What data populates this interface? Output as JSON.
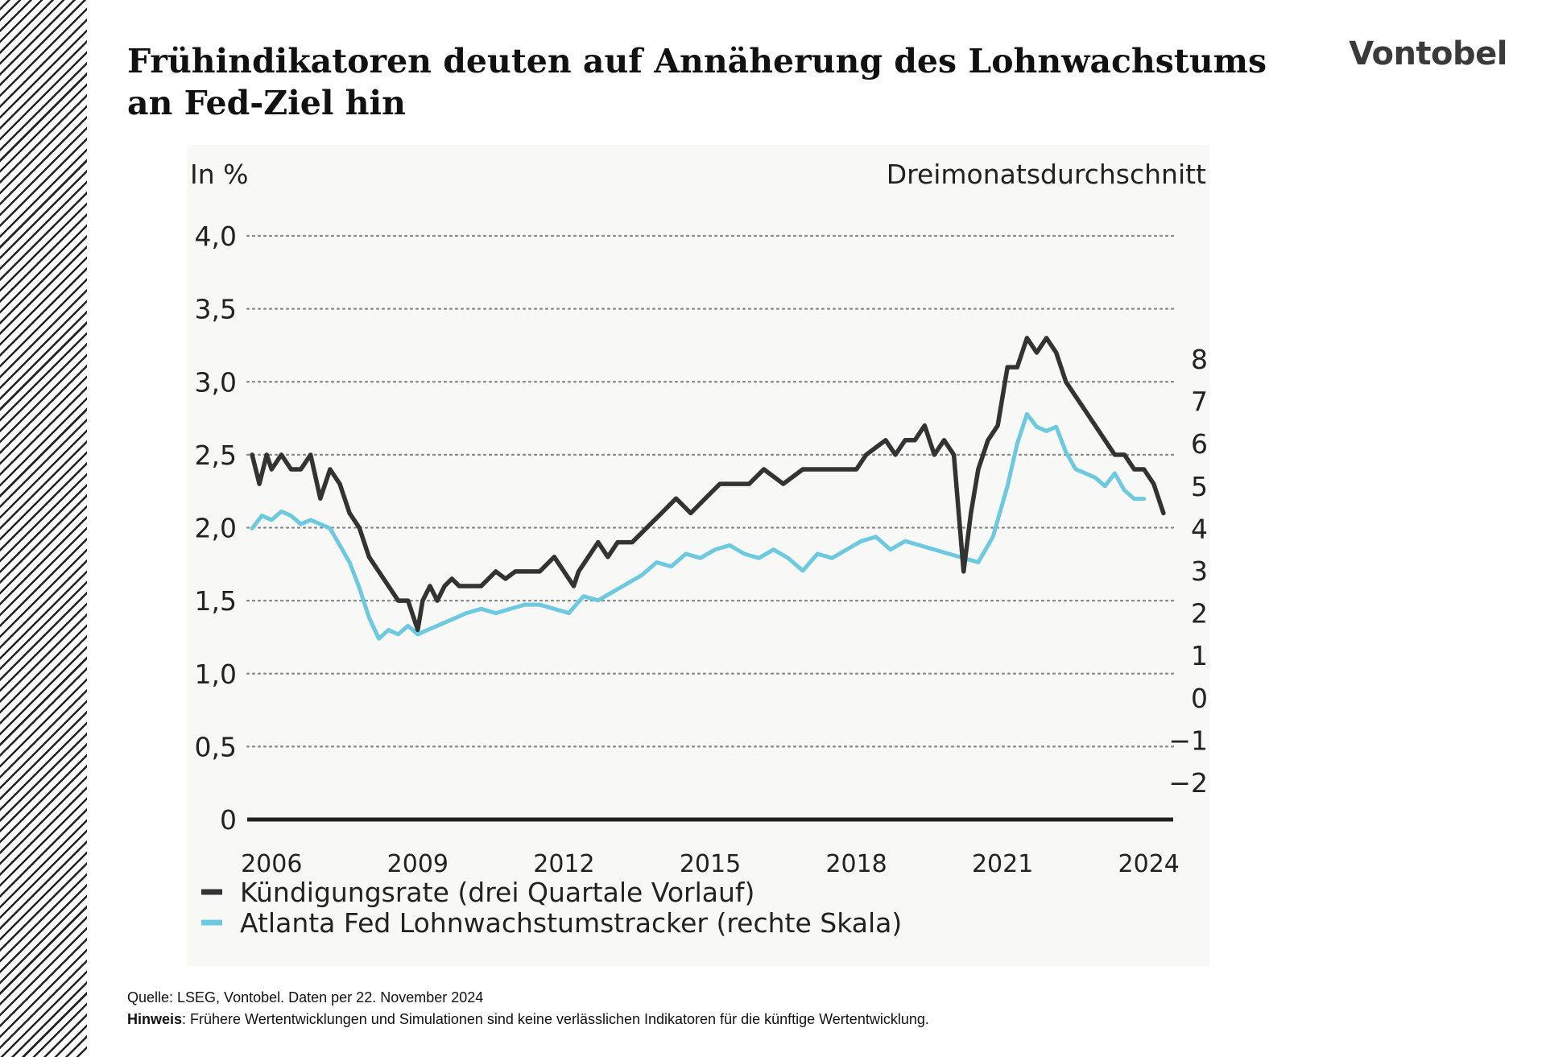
{
  "header": {
    "title": "Frühindikatoren deuten auf Annäherung des Lohnwachstums an Fed-Ziel hin",
    "logo": "Vontobel"
  },
  "footer": {
    "source": "Quelle: LSEG, Vontobel. Daten per 22. November 2024",
    "note_label": "Hinweis",
    "note_text": ": Frühere Wertentwicklungen und Simulationen sind keine verlässlichen Indikatoren für die künftige Wertentwicklung."
  },
  "chart_data": {
    "type": "line",
    "left_axis_title": "In %",
    "right_axis_title": "Dreimonatsdurchschnitt",
    "ylim_left": [
      0,
      4.0
    ],
    "yticks_left": [
      "0",
      "0,5",
      "1,0",
      "1,5",
      "2,0",
      "2,5",
      "3,0",
      "3,5",
      "4,0"
    ],
    "ylim_right": [
      -2,
      8
    ],
    "yticks_right": [
      "−2",
      "−1",
      "0",
      "1",
      "2",
      "3",
      "4",
      "5",
      "6",
      "7",
      "8"
    ],
    "xlim": [
      2005.5,
      2024.5
    ],
    "xticks": [
      "2006",
      "2009",
      "2012",
      "2015",
      "2018",
      "2021",
      "2024"
    ],
    "grid": "horizontal dotted",
    "legend_position": "bottom",
    "colors": {
      "series1": "#333333",
      "series2": "#6cc9e0",
      "grid": "#888888"
    },
    "series": [
      {
        "name": "Kündigungsrate (drei Quartale Vorlauf)",
        "axis": "left",
        "x": [
          2005.6,
          2005.75,
          2005.9,
          2006.0,
          2006.2,
          2006.4,
          2006.6,
          2006.8,
          2007.0,
          2007.2,
          2007.4,
          2007.6,
          2007.8,
          2008.0,
          2008.2,
          2008.4,
          2008.6,
          2008.8,
          2009.0,
          2009.1,
          2009.25,
          2009.4,
          2009.55,
          2009.7,
          2009.85,
          2010.0,
          2010.3,
          2010.6,
          2010.8,
          2011.0,
          2011.2,
          2011.5,
          2011.8,
          2012.0,
          2012.2,
          2012.3,
          2012.5,
          2012.7,
          2012.9,
          2013.1,
          2013.4,
          2013.7,
          2014.0,
          2014.3,
          2014.6,
          2014.9,
          2015.2,
          2015.5,
          2015.8,
          2016.1,
          2016.5,
          2016.9,
          2017.3,
          2017.7,
          2018.0,
          2018.2,
          2018.4,
          2018.6,
          2018.8,
          2019.0,
          2019.2,
          2019.4,
          2019.6,
          2019.8,
          2020.0,
          2020.2,
          2020.35,
          2020.5,
          2020.7,
          2020.9,
          2021.1,
          2021.3,
          2021.5,
          2021.7,
          2021.9,
          2022.1,
          2022.3,
          2022.5,
          2022.7,
          2022.9,
          2023.1,
          2023.3,
          2023.5,
          2023.7,
          2023.9,
          2024.1,
          2024.3
        ],
        "values": [
          2.5,
          2.3,
          2.5,
          2.4,
          2.5,
          2.4,
          2.4,
          2.5,
          2.2,
          2.4,
          2.3,
          2.1,
          2.0,
          1.8,
          1.7,
          1.6,
          1.5,
          1.5,
          1.3,
          1.5,
          1.6,
          1.5,
          1.6,
          1.65,
          1.6,
          1.6,
          1.6,
          1.7,
          1.65,
          1.7,
          1.7,
          1.7,
          1.8,
          1.7,
          1.6,
          1.7,
          1.8,
          1.9,
          1.8,
          1.9,
          1.9,
          2.0,
          2.1,
          2.2,
          2.1,
          2.2,
          2.3,
          2.3,
          2.3,
          2.4,
          2.3,
          2.4,
          2.4,
          2.4,
          2.4,
          2.5,
          2.55,
          2.6,
          2.5,
          2.6,
          2.6,
          2.7,
          2.5,
          2.6,
          2.5,
          1.7,
          2.1,
          2.4,
          2.6,
          2.7,
          3.1,
          3.1,
          3.3,
          3.2,
          3.3,
          3.2,
          3.0,
          2.9,
          2.8,
          2.7,
          2.6,
          2.5,
          2.5,
          2.4,
          2.4,
          2.3,
          2.1
        ]
      },
      {
        "name": "Atlanta Fed Lohnwachstumstracker (rechte Skala)",
        "axis": "right",
        "x": [
          2005.6,
          2005.8,
          2006.0,
          2006.2,
          2006.4,
          2006.6,
          2006.8,
          2007.0,
          2007.2,
          2007.4,
          2007.6,
          2007.8,
          2008.0,
          2008.2,
          2008.4,
          2008.6,
          2008.8,
          2009.0,
          2009.2,
          2009.4,
          2009.6,
          2009.8,
          2010.0,
          2010.3,
          2010.6,
          2010.9,
          2011.2,
          2011.5,
          2011.8,
          2012.1,
          2012.4,
          2012.7,
          2013.0,
          2013.3,
          2013.6,
          2013.9,
          2014.2,
          2014.5,
          2014.8,
          2015.1,
          2015.4,
          2015.7,
          2016.0,
          2016.3,
          2016.6,
          2016.9,
          2017.2,
          2017.5,
          2017.8,
          2018.1,
          2018.4,
          2018.7,
          2019.0,
          2019.3,
          2019.6,
          2019.9,
          2020.2,
          2020.5,
          2020.8,
          2021.1,
          2021.3,
          2021.5,
          2021.7,
          2021.9,
          2022.1,
          2022.3,
          2022.5,
          2022.7,
          2022.9,
          2023.1,
          2023.3,
          2023.5,
          2023.7,
          2023.9
        ],
        "values": [
          4.0,
          4.3,
          4.2,
          4.4,
          4.3,
          4.1,
          4.2,
          4.1,
          4.0,
          3.6,
          3.2,
          2.6,
          1.9,
          1.4,
          1.6,
          1.5,
          1.7,
          1.5,
          1.6,
          1.7,
          1.8,
          1.9,
          2.0,
          2.1,
          2.0,
          2.1,
          2.2,
          2.2,
          2.1,
          2.0,
          2.4,
          2.3,
          2.5,
          2.7,
          2.9,
          3.2,
          3.1,
          3.4,
          3.3,
          3.5,
          3.6,
          3.4,
          3.3,
          3.5,
          3.3,
          3.0,
          3.4,
          3.3,
          3.5,
          3.7,
          3.8,
          3.5,
          3.7,
          3.6,
          3.5,
          3.4,
          3.3,
          3.2,
          3.8,
          5.0,
          6.0,
          6.7,
          6.4,
          6.3,
          6.4,
          5.8,
          5.4,
          5.3,
          5.2,
          5.0,
          5.3,
          4.9,
          4.7,
          4.7
        ]
      }
    ]
  }
}
